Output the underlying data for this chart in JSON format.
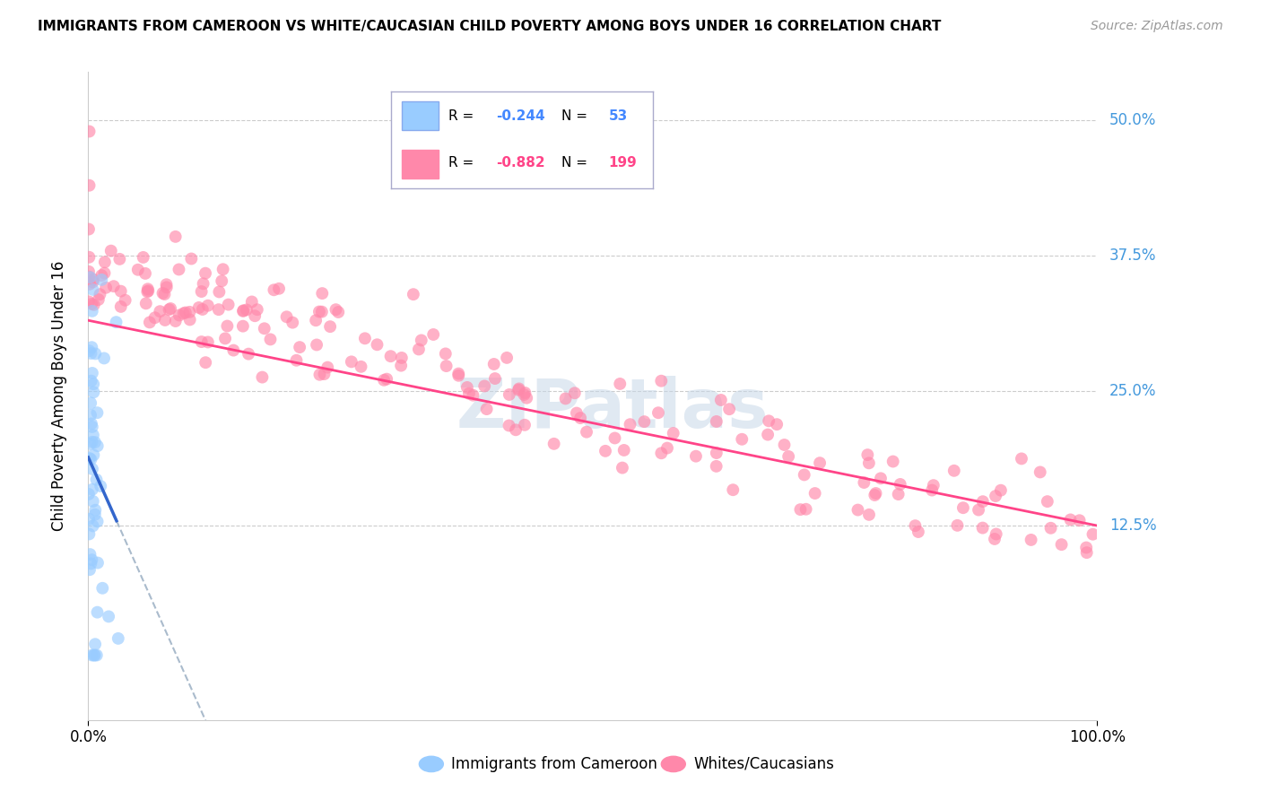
{
  "title": "IMMIGRANTS FROM CAMEROON VS WHITE/CAUCASIAN CHILD POVERTY AMONG BOYS UNDER 16 CORRELATION CHART",
  "source": "Source: ZipAtlas.com",
  "ylabel": "Child Poverty Among Boys Under 16",
  "ytick_labels": [
    "12.5%",
    "25.0%",
    "37.5%",
    "50.0%"
  ],
  "ytick_values": [
    0.125,
    0.25,
    0.375,
    0.5
  ],
  "xmin": 0.0,
  "xmax": 1.0,
  "ymin": -0.055,
  "ymax": 0.545,
  "watermark": "ZIPatlas",
  "legend_R1": "-0.244",
  "legend_N1": "53",
  "legend_R2": "-0.882",
  "legend_N2": "199",
  "blue_color": "#99ccff",
  "pink_color": "#ff88aa",
  "blue_line_color": "#3366cc",
  "pink_line_color": "#ff4488",
  "dashed_line_color": "#aabbcc",
  "grid_color": "#cccccc",
  "ytick_color": "#4499dd",
  "title_fontsize": 11,
  "source_fontsize": 10,
  "label_fontsize": 12,
  "legend_fontsize": 12,
  "watermark_fontsize": 55,
  "scatter_size": 100,
  "scatter_alpha": 0.65
}
